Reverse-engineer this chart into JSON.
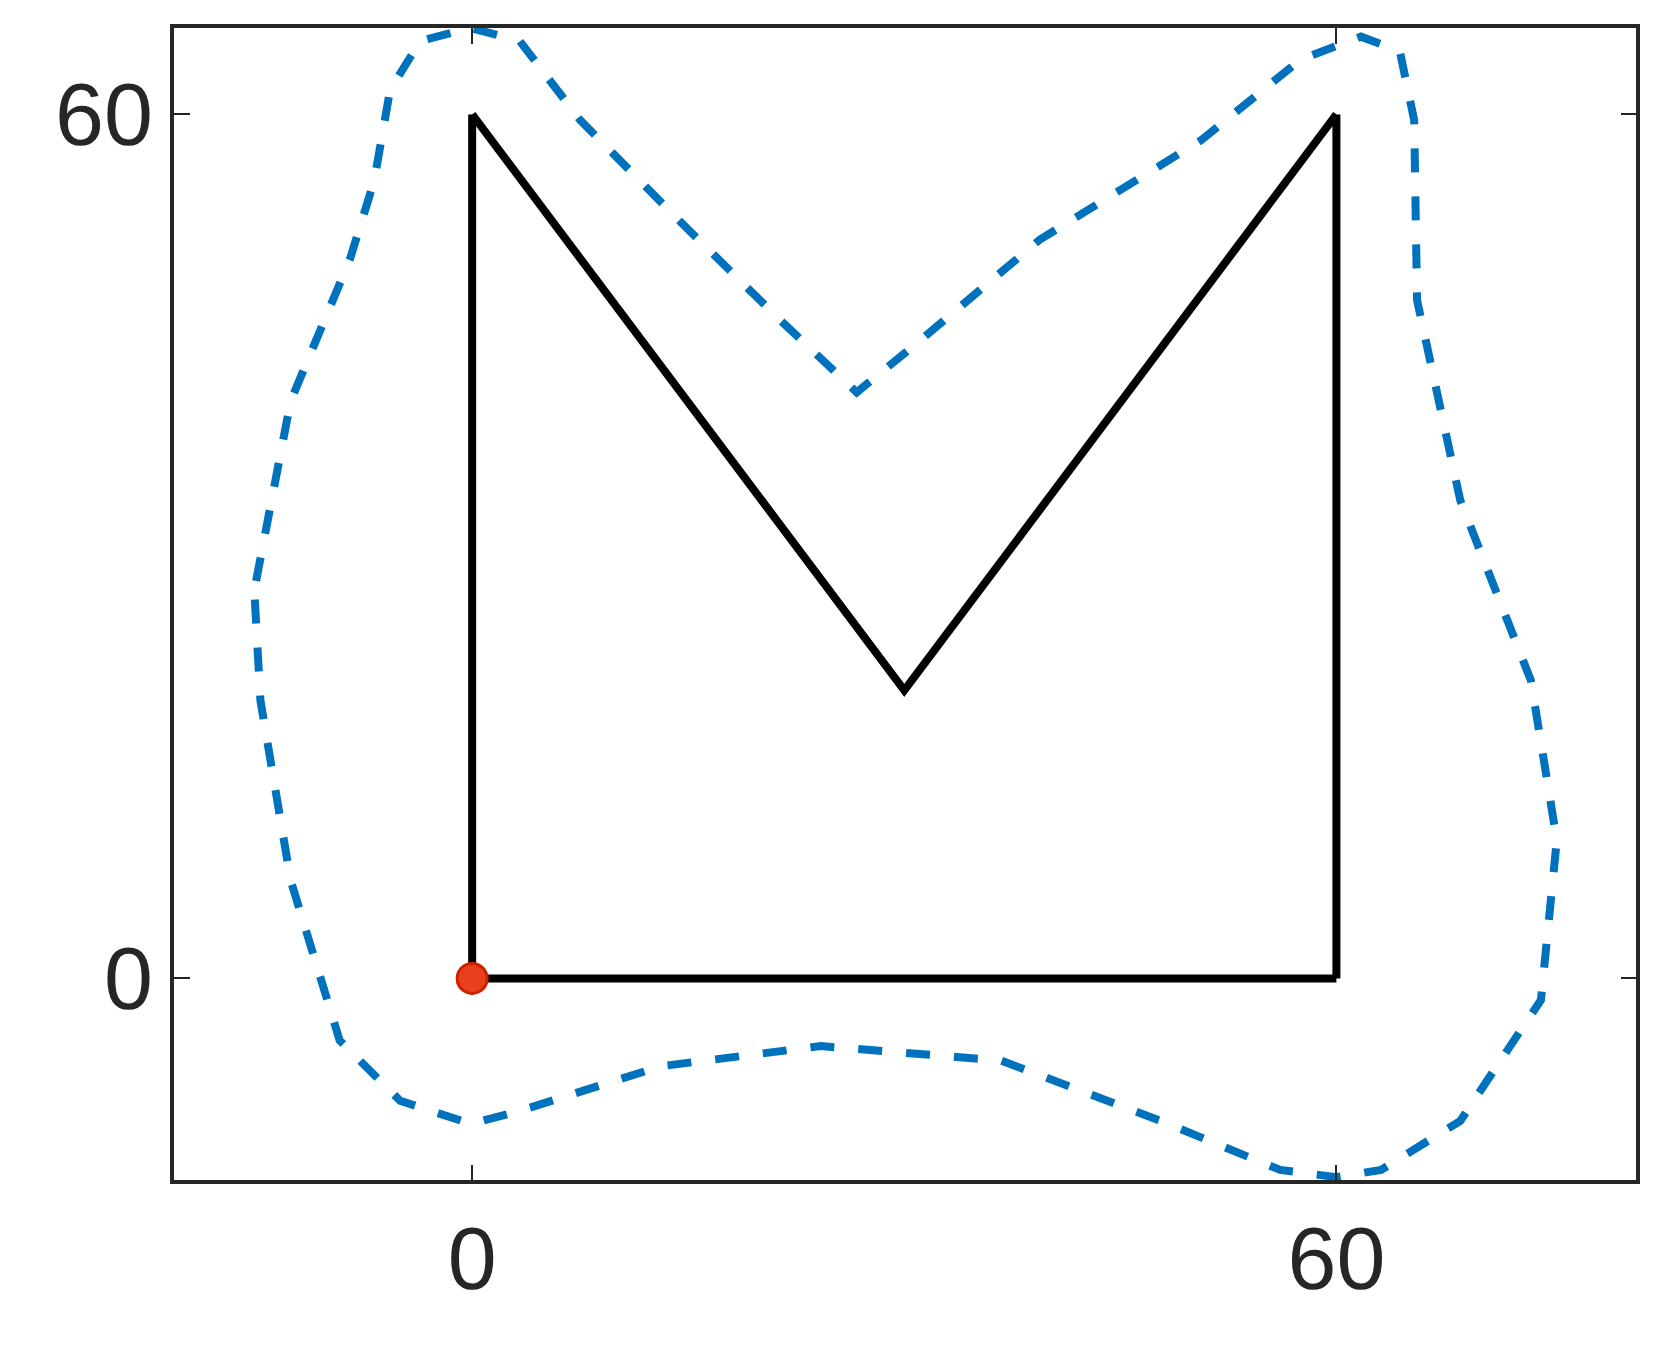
{
  "chart_data": {
    "type": "line",
    "xlim": [
      -20.7,
      80.8
    ],
    "ylim": [
      -14,
      66
    ],
    "xticks": [
      0,
      60
    ],
    "yticks": [
      0,
      60
    ],
    "grid": false,
    "series": [
      {
        "color": "#0072bd",
        "line_style": "dashed",
        "marker": "none",
        "x": [
          -15,
          -12.6,
          -8.5,
          -6.8,
          -5.7,
          -3.6,
          -0.1,
          3.3,
          7.5,
          14.4,
          21.4,
          26.7,
          31.1,
          39.4,
          50.6,
          57.5,
          61.7,
          64.4,
          65.4,
          65.6,
          68.6,
          73.5,
          75.3,
          74.2,
          68.6,
          63.1,
          60,
          56.1,
          47.8,
          36.7,
          24.2,
          13.1,
          3.3,
          -0.1,
          -5,
          -9.2,
          -12.6,
          -14.7,
          -15.1
        ],
        "values": [
          27.6,
          40.1,
          49.9,
          55.4,
          61.7,
          65.1,
          66,
          65.1,
          59.6,
          52.6,
          45.7,
          40.7,
          44.3,
          51.3,
          58.2,
          63.8,
          65.4,
          64.4,
          59.6,
          47.1,
          33.2,
          20.7,
          9.6,
          -1.5,
          -9.9,
          -13.3,
          -13.8,
          -13.3,
          -9.9,
          -5.7,
          -4.7,
          -6.1,
          -9.2,
          -10.1,
          -8.5,
          -4.3,
          6.8,
          19.3,
          26.5
        ]
      },
      {
        "color": "#000000",
        "line_style": "solid",
        "marker": "none",
        "x": [
          0,
          0
        ],
        "values": [
          0,
          60
        ]
      },
      {
        "color": "#000000",
        "line_style": "solid",
        "marker": "none",
        "x": [
          0,
          30,
          60
        ],
        "values": [
          60,
          20,
          60
        ]
      },
      {
        "color": "#000000",
        "line_style": "solid",
        "marker": "none",
        "x": [
          60,
          60
        ],
        "values": [
          60,
          0
        ]
      },
      {
        "color": "#000000",
        "line_style": "solid",
        "marker": "none",
        "x": [
          0,
          60
        ],
        "values": [
          0,
          0
        ]
      },
      {
        "type": "scatter",
        "color": "#e8401c",
        "marker": "circle",
        "x": [
          0
        ],
        "values": [
          0
        ]
      }
    ]
  }
}
